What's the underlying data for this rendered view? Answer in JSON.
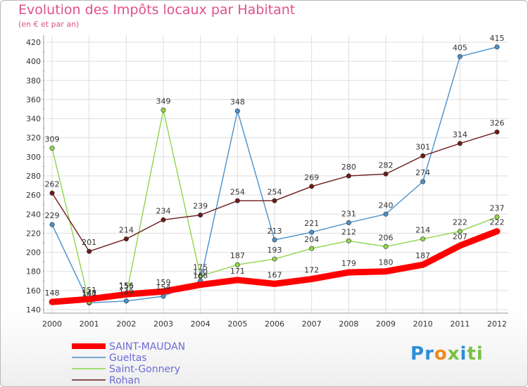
{
  "header": {
    "title": "Evolution des Impôts locaux par Habitant",
    "subtitle": "(en € et par an)"
  },
  "logo": {
    "text": "Proxiti"
  },
  "chart_data": {
    "type": "line",
    "title": "Evolution des Impôts locaux par Habitant",
    "subtitle": "(en € et par an)",
    "x": [
      "2000",
      "2001",
      "2002",
      "2003",
      "2004",
      "2005",
      "2006",
      "2007",
      "2008",
      "2009",
      "2010",
      "2011",
      "2012"
    ],
    "y_ticks": [
      140,
      160,
      180,
      200,
      220,
      240,
      260,
      280,
      300,
      320,
      340,
      360,
      380,
      400,
      420
    ],
    "ylim": [
      140,
      420
    ],
    "grid": true,
    "legend_position": "bottom-left",
    "series": [
      {
        "name": "SAINT-MAUDAN",
        "color": "#ff0000",
        "values": [
          148,
          151,
          156,
          159,
          166,
          171,
          167,
          172,
          179,
          180,
          187,
          207,
          222
        ],
        "labels": [
          "148",
          "151",
          "156",
          "159",
          "166",
          "171",
          "167",
          "172",
          "179",
          "180",
          "187",
          "207",
          "222"
        ]
      },
      {
        "name": "Gueltas",
        "color": "#4a90c9",
        "values": [
          229,
          147,
          149,
          154,
          170,
          348,
          213,
          221,
          231,
          240,
          274,
          405,
          415
        ],
        "labels": [
          "229",
          "147",
          "149",
          "154",
          "170",
          "348",
          "213",
          "221",
          "231",
          "240",
          "274",
          "405",
          "415"
        ]
      },
      {
        "name": "Saint-Gonnery",
        "color": "#8ed64a",
        "values": [
          309,
          148,
          155,
          349,
          175,
          187,
          193,
          204,
          212,
          206,
          214,
          222,
          237
        ],
        "labels": [
          "309",
          "148",
          "155",
          "349",
          "175",
          "187",
          "193",
          "204",
          "212",
          "206",
          "214",
          "222",
          "237"
        ]
      },
      {
        "name": "Rohan",
        "color": "#6b1a1a",
        "values": [
          262,
          201,
          214,
          234,
          239,
          254,
          254,
          269,
          280,
          282,
          301,
          314,
          326
        ],
        "labels": [
          "262",
          "201",
          "214",
          "234",
          "239",
          "254",
          "254",
          "269",
          "280",
          "282",
          "301",
          "314",
          "326"
        ]
      }
    ]
  }
}
